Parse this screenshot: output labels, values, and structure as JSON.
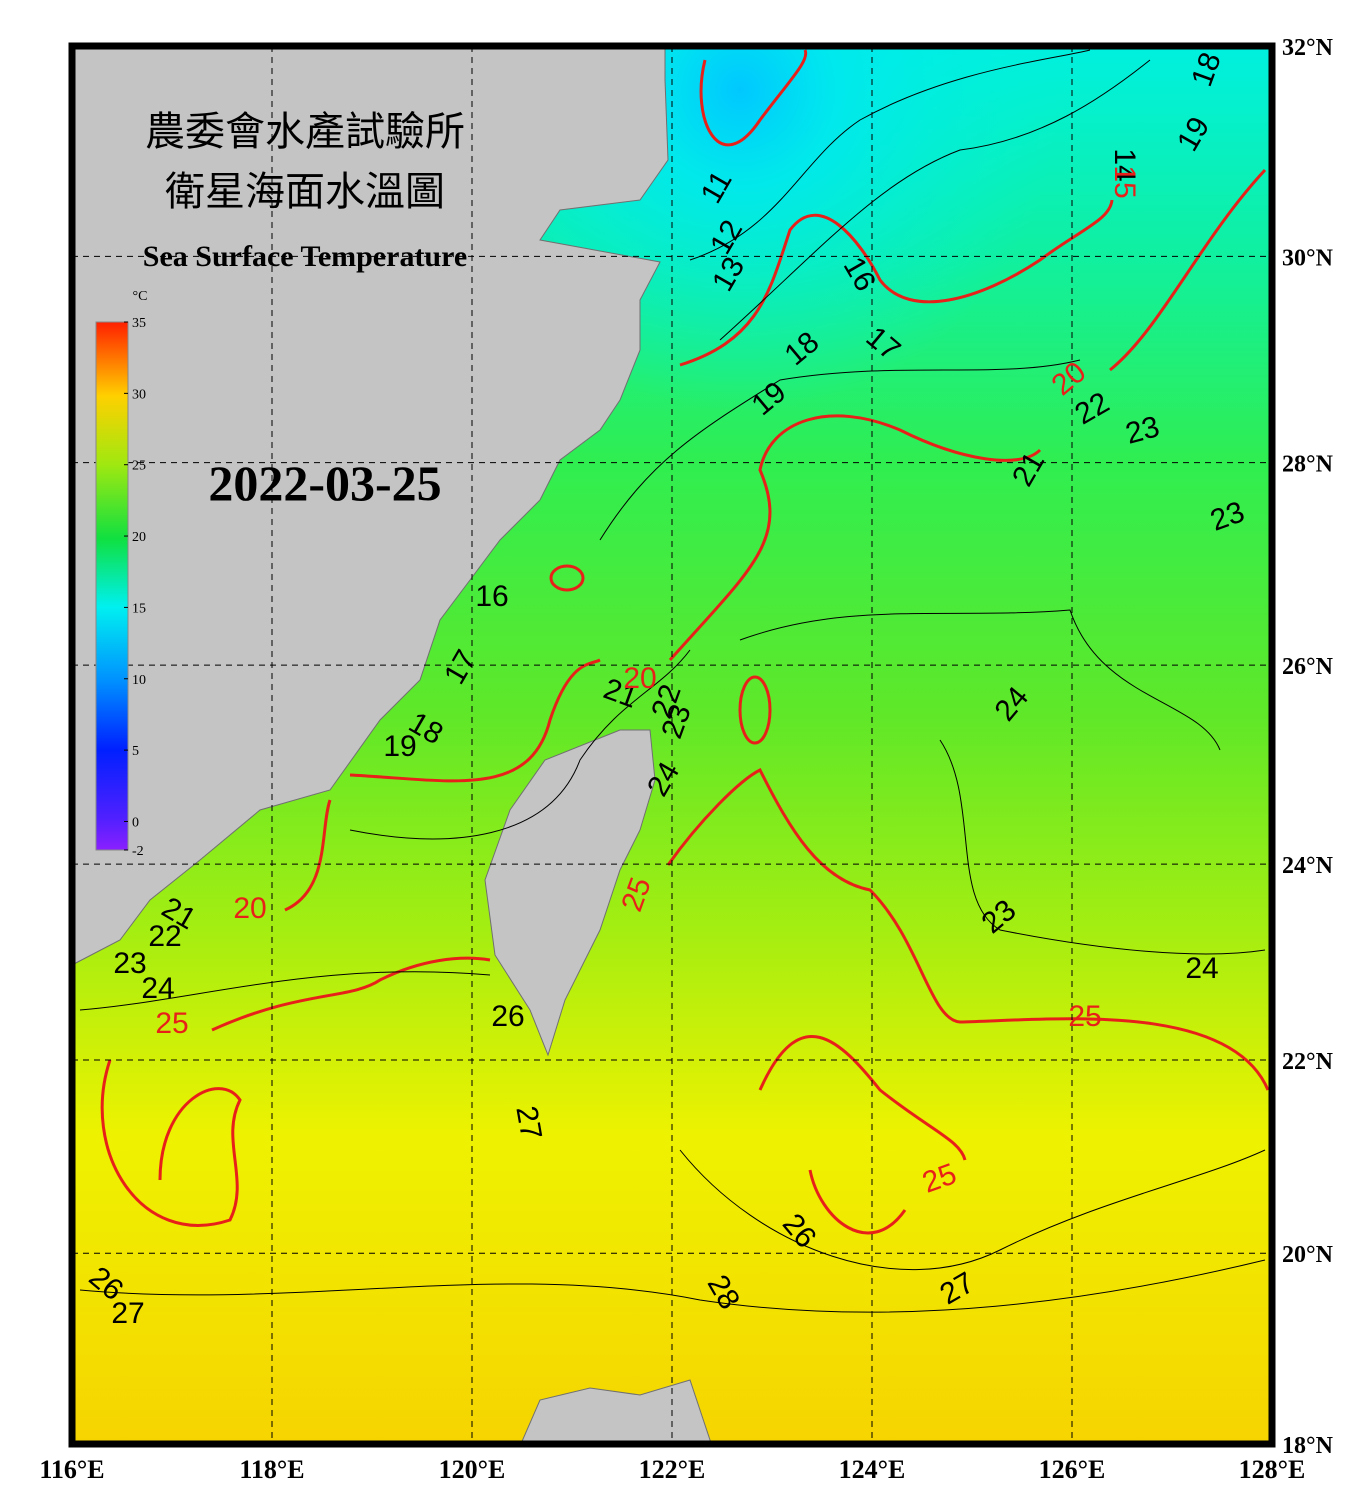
{
  "header": {
    "title_zh_1": "農委會水產試驗所",
    "title_zh_2": "衛星海面水溫圖",
    "title_en": "Sea Surface Temperature",
    "date": "2022-03-25"
  },
  "map": {
    "xlim": [
      116,
      128
    ],
    "ylim": [
      18,
      32
    ],
    "xticks": [
      {
        "value": 116,
        "label": "116°E"
      },
      {
        "value": 118,
        "label": "118°E"
      },
      {
        "value": 120,
        "label": "120°E"
      },
      {
        "value": 122,
        "label": "122°E"
      },
      {
        "value": 124,
        "label": "124°E"
      },
      {
        "value": 126,
        "label": "126°E"
      },
      {
        "value": 128,
        "label": "128°E"
      }
    ],
    "yticks": [
      {
        "value": 18,
        "label": "18°N"
      },
      {
        "value": 20,
        "label": "20°N"
      },
      {
        "value": 22,
        "label": "22°N"
      },
      {
        "value": 24,
        "label": "24°N"
      },
      {
        "value": 26,
        "label": "26°N"
      },
      {
        "value": 28,
        "label": "28°N"
      },
      {
        "value": 30,
        "label": "30°N"
      },
      {
        "value": 32,
        "label": "32°N"
      }
    ],
    "grid": true
  },
  "colorbar": {
    "unit": "°C",
    "lim": [
      -2,
      35
    ],
    "ticks": [
      -2,
      0,
      5,
      10,
      15,
      20,
      25,
      30,
      35
    ]
  },
  "contours": {
    "color": "#000000",
    "labels": [
      11,
      12,
      13,
      16,
      17,
      18,
      19,
      14,
      19,
      18,
      22,
      23,
      21,
      23,
      16,
      17,
      18,
      19,
      21,
      22,
      23,
      24,
      24,
      21,
      22,
      23,
      24,
      26,
      23,
      24,
      27,
      26,
      28,
      27,
      26,
      27
    ]
  },
  "major_contours": {
    "color": "#e8201a",
    "labels": [
      15,
      20,
      20,
      25,
      20,
      25,
      25,
      25
    ]
  }
}
